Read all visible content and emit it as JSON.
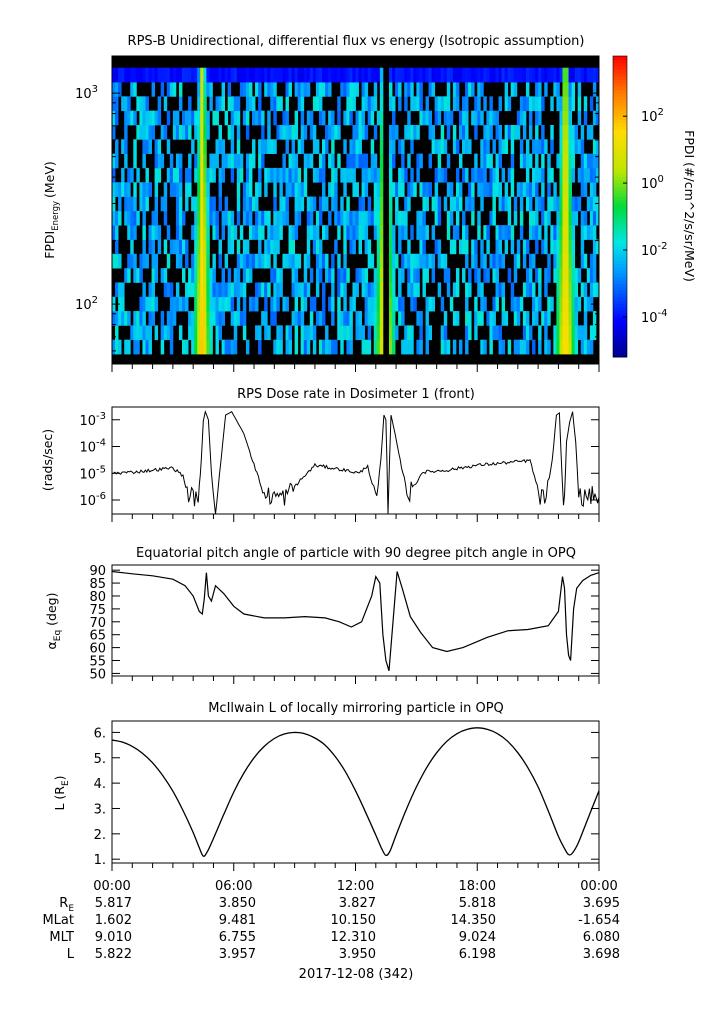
{
  "chart_data": [
    {
      "type": "heatmap",
      "title": "RPS-B  Unidirectional, differential flux vs energy (Isotropic assumption)",
      "ylabel": "FPDI",
      "ylabel_sub": "Energy",
      "ylabel_unit": "(MeV)",
      "yscale": "log",
      "ylim": [
        52,
        1500
      ],
      "yticks": [
        {
          "value": 100,
          "base": "10",
          "exp": "2"
        },
        {
          "value": 1000,
          "base": "10",
          "exp": "3"
        }
      ],
      "xlim": [
        0,
        24
      ],
      "energy_range": [
        58,
        1320
      ],
      "colorbar": {
        "label": "FPDI (#/cm^2/s/sr/MeV)",
        "scale": "log",
        "range_exp": [
          -5.2,
          3.8
        ],
        "ticks": [
          {
            "base": "10",
            "exp": "-4",
            "value": 0.0001
          },
          {
            "base": "10",
            "exp": "-2",
            "value": 0.01
          },
          {
            "base": "10",
            "exp": "0",
            "value": 1
          },
          {
            "base": "10",
            "exp": "2",
            "value": 100
          }
        ]
      },
      "belt_crossings": [
        {
          "start": 3.9,
          "end": 4.6,
          "center": 4.45
        },
        {
          "start": 12.85,
          "end": 13.65,
          "center": 13.45
        },
        {
          "start": 22.1,
          "end": 22.9,
          "center": 22.35
        }
      ],
      "gaps": [
        {
          "start": 13.4,
          "end": 13.6
        }
      ]
    },
    {
      "type": "line",
      "title": "RPS  Dose rate in Dosimeter 1 (front)",
      "ylabel": "(rads/sec)",
      "yscale": "log",
      "ylim": [
        3e-07,
        0.003
      ],
      "yticks": [
        {
          "value": 1e-06,
          "base": "10",
          "exp": "-6"
        },
        {
          "value": 1e-05,
          "base": "10",
          "exp": "-5"
        },
        {
          "value": 0.0001,
          "base": "10",
          "exp": "-4"
        },
        {
          "value": 0.001,
          "base": "10",
          "exp": "-3"
        }
      ],
      "xlim": [
        0,
        24
      ],
      "series": [
        {
          "x": [
            0,
            1,
            2,
            3,
            3.5,
            3.7,
            4.0,
            4.2,
            4.3,
            4.4,
            4.5,
            4.6,
            4.75,
            4.9,
            5.1,
            5.3,
            5.6,
            5.9,
            6.5,
            7.5,
            8.5,
            10,
            11.5,
            12.2,
            12.6,
            12.9,
            13.05,
            13.25,
            13.4,
            13.5,
            13.6,
            13.75,
            13.95,
            14.2,
            14.6,
            15.3,
            16.5,
            18,
            19.5,
            20.6,
            21.1,
            21.4,
            21.7,
            21.9,
            22.05,
            22.2,
            22.3,
            22.4,
            22.55,
            22.7,
            22.85,
            23,
            23.3,
            23.6,
            24
          ],
          "y": [
            1e-05,
            1.1e-05,
            1.3e-05,
            1.6e-05,
            8e-06,
            2e-06,
            1.2e-06,
            1.3e-06,
            2e-06,
            3e-05,
            0.0009,
            0.002,
            0.001,
            1e-05,
            3e-07,
            1e-05,
            0.0015,
            0.002,
            0.0003,
            1.5e-06,
            1.3e-06,
            2e-05,
            1.3e-05,
            1e-05,
            2e-05,
            2e-06,
            1.2e-06,
            3e-05,
            0.0015,
            0.001,
            4e-07,
            0.0015,
            0.0003,
            3e-05,
            1.5e-06,
            1.1e-05,
            1.3e-05,
            2e-05,
            2.5e-05,
            3e-05,
            1.3e-06,
            1.2e-06,
            3e-05,
            0.0015,
            0.0018,
            2e-06,
            1e-06,
            0.00015,
            0.0008,
            0.002,
            0.00015,
            1.5e-06,
            1.2e-06,
            1.5e-06,
            1.3e-06
          ]
        }
      ]
    },
    {
      "type": "line",
      "title": "Equatorial pitch angle of particle with 90 degree pitch angle in OPQ",
      "ylabel": "α",
      "ylabel_sub": "Eq",
      "ylabel_unit": "(deg)",
      "ylim": [
        49,
        92
      ],
      "yticks": [
        50,
        55,
        60,
        65,
        70,
        75,
        80,
        85,
        90
      ],
      "xlim": [
        0,
        24
      ],
      "series": [
        {
          "x": [
            0,
            1,
            2,
            3,
            3.6,
            4.0,
            4.3,
            4.45,
            4.55,
            4.65,
            4.75,
            4.9,
            5.1,
            5.5,
            6.0,
            6.5,
            7.5,
            8.5,
            9.5,
            10.5,
            11.2,
            11.8,
            12.3,
            12.8,
            13.0,
            13.2,
            13.35,
            13.5,
            13.65,
            13.85,
            14.05,
            14.3,
            14.7,
            15.2,
            15.8,
            16.5,
            17.3,
            18.5,
            19.5,
            20.5,
            21.5,
            22.0,
            22.2,
            22.3,
            22.4,
            22.5,
            22.6,
            22.75,
            22.9,
            23.2,
            23.6,
            24
          ],
          "y": [
            89.5,
            88.6,
            87.8,
            86.5,
            84,
            80,
            74,
            73,
            79,
            89,
            80,
            78,
            84,
            81,
            76,
            73,
            71.5,
            71.5,
            72,
            71.5,
            70,
            68,
            70,
            80,
            87.5,
            85,
            65,
            55,
            51,
            70,
            89.5,
            83,
            72,
            66,
            60,
            58.5,
            60,
            64,
            66.5,
            67,
            68.5,
            74,
            87.5,
            83,
            65,
            57,
            55,
            75,
            83,
            86,
            88,
            89
          ]
        }
      ]
    },
    {
      "type": "line",
      "title": "McIlwain L of locally mirroring particle in OPQ",
      "ylabel": "L (R",
      "ylabel_sub": "E",
      "ylabel_close": ")",
      "ylim": [
        0.85,
        6.45
      ],
      "yticks": [
        1,
        2,
        3,
        4,
        5,
        6
      ],
      "xlim": [
        0,
        24
      ],
      "series": [
        {
          "x": [
            0,
            0.5,
            1,
            1.5,
            2,
            2.5,
            3,
            3.5,
            4,
            4.3,
            4.5,
            4.7,
            5,
            5.5,
            6,
            6.5,
            7,
            7.5,
            8,
            8.5,
            9,
            9.5,
            10,
            10.5,
            11,
            11.5,
            12,
            12.5,
            13,
            13.3,
            13.5,
            13.7,
            14,
            14.5,
            15,
            15.5,
            16,
            16.5,
            17,
            17.5,
            18,
            18.5,
            19,
            19.5,
            20,
            20.5,
            21,
            21.5,
            22,
            22.3,
            22.5,
            22.7,
            23,
            23.5,
            24
          ],
          "y": [
            5.7,
            5.62,
            5.45,
            5.18,
            4.8,
            4.3,
            3.68,
            2.92,
            2.05,
            1.45,
            1.12,
            1.3,
            1.82,
            2.75,
            3.65,
            4.4,
            5.0,
            5.45,
            5.76,
            5.94,
            6.0,
            5.95,
            5.78,
            5.5,
            5.05,
            4.45,
            3.7,
            2.85,
            1.95,
            1.4,
            1.15,
            1.32,
            1.95,
            2.95,
            3.85,
            4.6,
            5.2,
            5.65,
            5.95,
            6.12,
            6.18,
            6.12,
            5.95,
            5.65,
            5.2,
            4.6,
            3.85,
            2.9,
            1.9,
            1.42,
            1.18,
            1.25,
            1.68,
            2.7,
            3.7
          ]
        }
      ]
    }
  ],
  "x_axis": {
    "tick_labels": [
      "00:00",
      "06:00",
      "12:00",
      "18:00",
      "00:00"
    ],
    "tick_hours": [
      0,
      6,
      12,
      18,
      24
    ],
    "date_label": "2017-12-08 (342)",
    "ephemeris": [
      {
        "name": "R",
        "sub": "E",
        "values": [
          "5.817",
          "3.850",
          "3.827",
          "5.818",
          "3.695"
        ]
      },
      {
        "name": "MLat",
        "sub": "",
        "values": [
          "1.602",
          "9.481",
          "10.150",
          "14.350",
          "-1.654"
        ]
      },
      {
        "name": "MLT",
        "sub": "",
        "values": [
          "9.010",
          "6.755",
          "12.310",
          "9.024",
          "6.080"
        ]
      },
      {
        "name": "L",
        "sub": "",
        "values": [
          "5.822",
          "3.957",
          "3.950",
          "6.198",
          "3.698"
        ]
      }
    ]
  }
}
